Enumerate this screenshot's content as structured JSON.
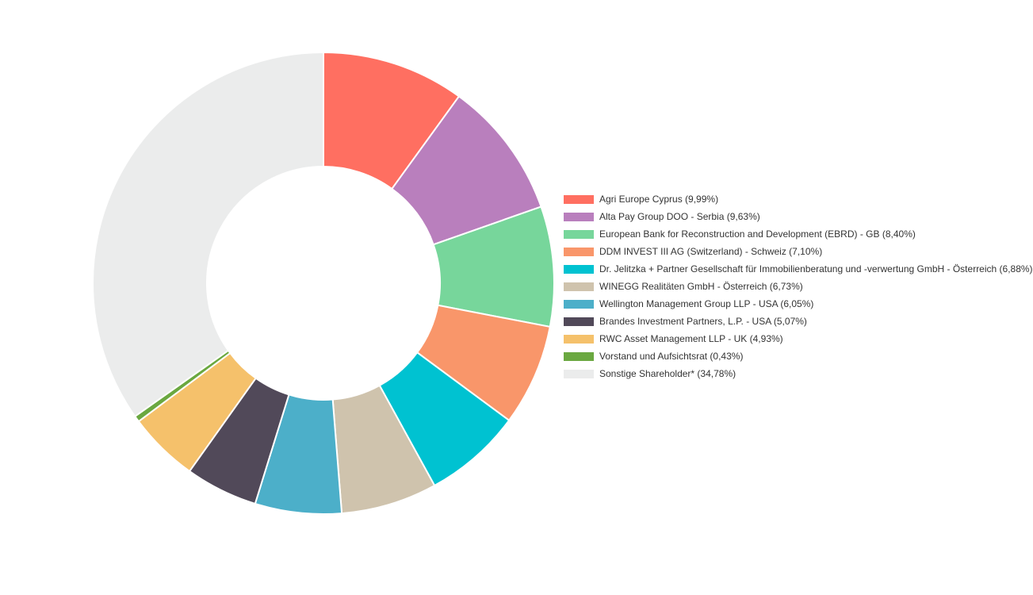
{
  "chart_data": {
    "type": "pie",
    "variant": "donut",
    "title": "",
    "legend_position": "right",
    "slices": [
      {
        "label": "Agri Europe Cyprus (9,99%)",
        "value": 9.99,
        "color": "#ff6f61"
      },
      {
        "label": "Alta Pay Group DOO - Serbia (9,63%)",
        "value": 9.63,
        "color": "#b97fbd"
      },
      {
        "label": "European Bank for Reconstruction and Development (EBRD) - GB (8,40%)",
        "value": 8.4,
        "color": "#77d69b"
      },
      {
        "label": "DDM INVEST III AG (Switzerland) - Schweiz (7,10%)",
        "value": 7.1,
        "color": "#f9966a"
      },
      {
        "label": "Dr. Jelitzka + Partner Gesellschaft für Immobilienberatung und -verwertung GmbH - Österreich (6,88%)",
        "value": 6.88,
        "color": "#00c2d1"
      },
      {
        "label": "WINEGG Realitäten GmbH - Österreich (6,73%)",
        "value": 6.73,
        "color": "#cfc3ad"
      },
      {
        "label": "Wellington Management Group LLP - USA (6,05%)",
        "value": 6.05,
        "color": "#4cafc9"
      },
      {
        "label": "Brandes Investment Partners, L.P. - USA (5,07%)",
        "value": 5.07,
        "color": "#514959"
      },
      {
        "label": "RWC Asset Management LLP - UK (4,93%)",
        "value": 4.93,
        "color": "#f5c16b"
      },
      {
        "label": "Vorstand und Aufsichtsrat (0,43%)",
        "value": 0.43,
        "color": "#6aa840"
      },
      {
        "label": "Sonstige Shareholder* (34,78%)",
        "value": 34.78,
        "color": "#ebecec"
      }
    ]
  }
}
